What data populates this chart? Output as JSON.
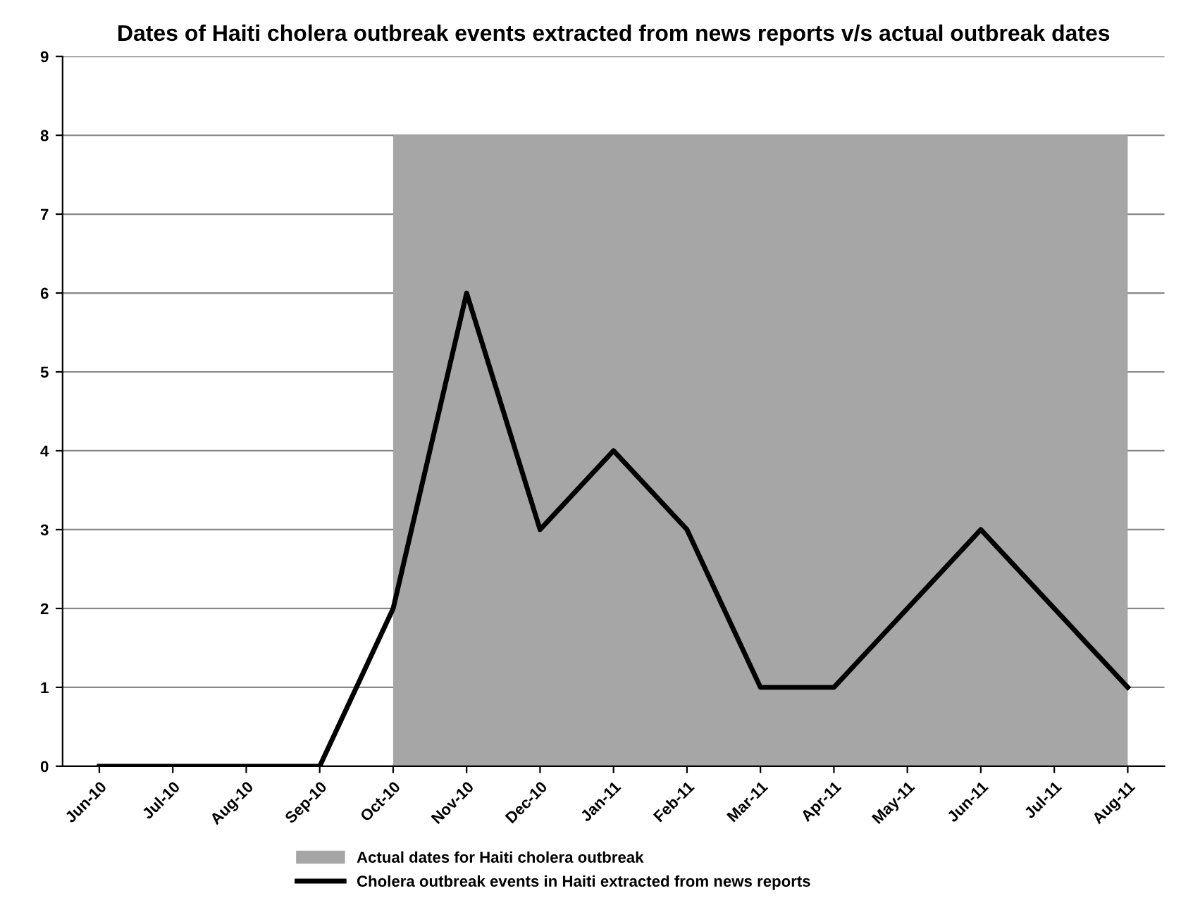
{
  "chart_data": {
    "type": "line",
    "title": "Dates of Haiti cholera outbreak events extracted from news reports v/s actual outbreak dates",
    "categories": [
      "Jun-10",
      "Jul-10",
      "Aug-10",
      "Sep-10",
      "Oct-10",
      "Nov-10",
      "Dec-10",
      "Jan-11",
      "Feb-11",
      "Mar-11",
      "Apr-11",
      "May-11",
      "Jun-11",
      "Jul-11",
      "Aug-11"
    ],
    "series": [
      {
        "name": "Actual dates for Haiti cholera outbreak",
        "type": "area",
        "color": "#a6a6a6",
        "values": [
          null,
          null,
          null,
          null,
          8,
          8,
          8,
          8,
          8,
          8,
          8,
          8,
          8,
          8,
          8
        ]
      },
      {
        "name": "Cholera outbreak events in Haiti extracted from news reports",
        "color": "#000000",
        "values": [
          0,
          0,
          0,
          0,
          2,
          6,
          3,
          4,
          3,
          1,
          1,
          2,
          3,
          2,
          1
        ]
      }
    ],
    "ylim": [
      0,
      9
    ],
    "yticks": [
      0,
      1,
      2,
      3,
      4,
      5,
      6,
      7,
      8,
      9
    ],
    "grid": "y",
    "legend": "bottom",
    "marker": "none",
    "line_style": "solid"
  }
}
